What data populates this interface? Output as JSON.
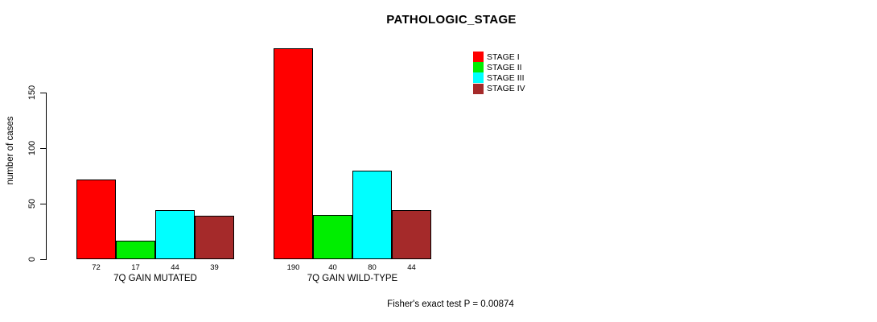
{
  "chart_data": {
    "type": "bar",
    "title": "PATHOLOGIC_STAGE",
    "ylabel": "number of cases",
    "xlabel": "",
    "ylim": [
      0,
      190
    ],
    "yticks": [
      0,
      50,
      100,
      150
    ],
    "grid": false,
    "legend_position": "top-right",
    "groups": [
      "7Q GAIN MUTATED",
      "7Q GAIN WILD-TYPE"
    ],
    "series": [
      {
        "name": "STAGE I",
        "color": "#ff0000",
        "values": [
          72,
          190
        ]
      },
      {
        "name": "STAGE II",
        "color": "#00ee00",
        "values": [
          17,
          40
        ]
      },
      {
        "name": "STAGE III",
        "color": "#00ffff",
        "values": [
          44,
          80
        ]
      },
      {
        "name": "STAGE IV",
        "color": "#a52a2a",
        "values": [
          39,
          44
        ]
      }
    ],
    "show_bar_values": true,
    "annotation": "Fisher's exact test P = 0.00874"
  },
  "colors": {
    "axis": "#000000",
    "background": "#ffffff",
    "text": "#000000"
  }
}
